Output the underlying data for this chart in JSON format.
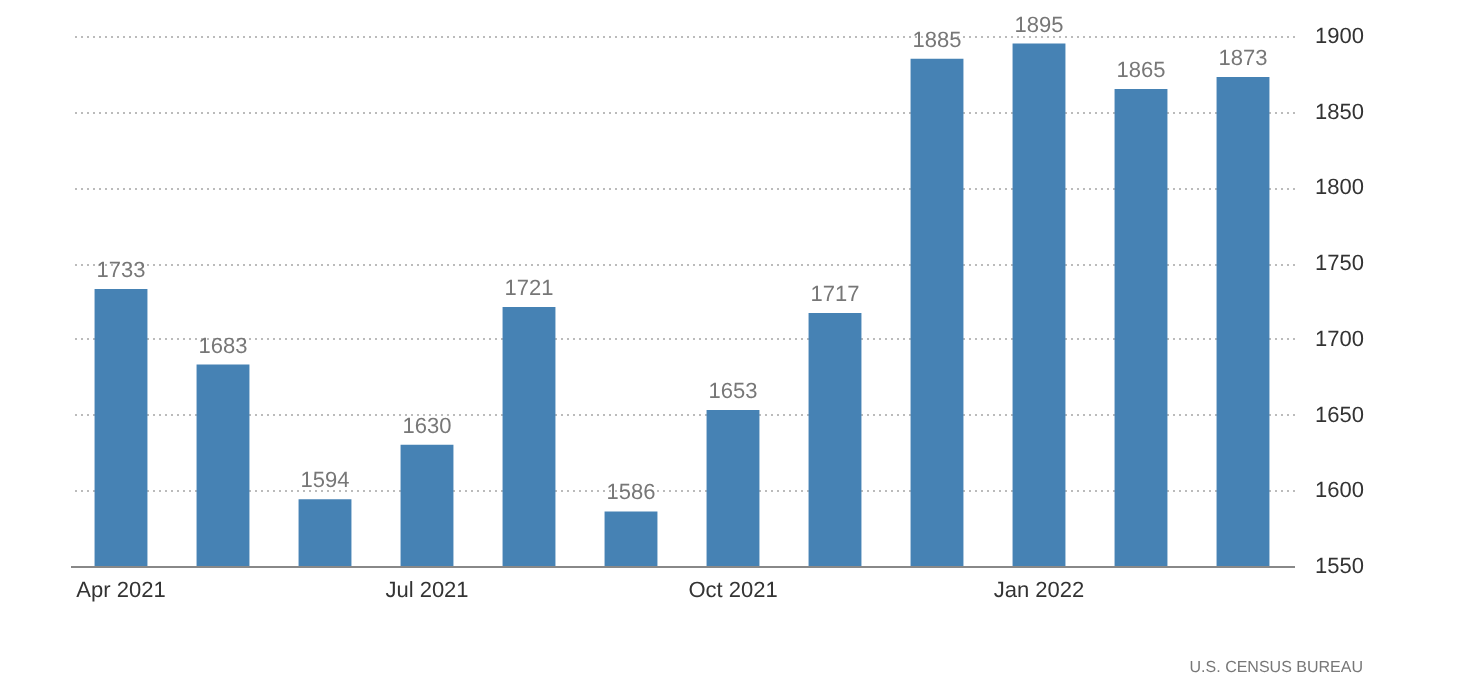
{
  "chart_data": {
    "type": "bar",
    "categories": [
      "Apr 2021",
      null,
      null,
      "Jul 2021",
      null,
      null,
      "Oct 2021",
      null,
      null,
      "Jan 2022",
      null,
      null
    ],
    "values": [
      1733,
      1683,
      1594,
      1630,
      1721,
      1586,
      1653,
      1717,
      1885,
      1895,
      1865,
      1873
    ],
    "color": "#4682b4",
    "ylim": [
      1550,
      1900
    ],
    "yticks": [
      1550,
      1600,
      1650,
      1700,
      1750,
      1800,
      1850,
      1900
    ],
    "grid": "y",
    "data_labels": true,
    "annotations": [
      "U.S. CENSUS BUREAU"
    ]
  }
}
